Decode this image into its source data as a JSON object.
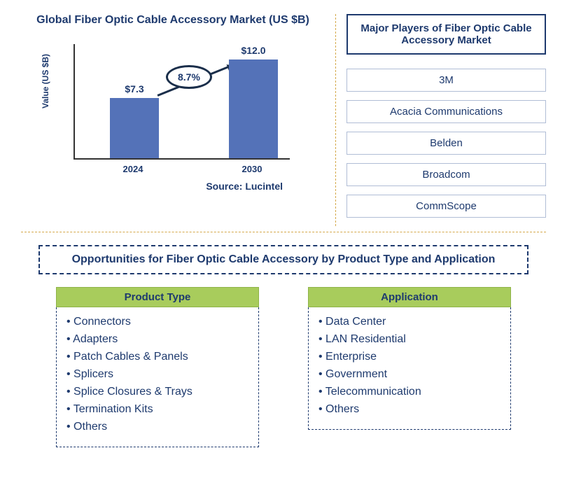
{
  "chart": {
    "title": "Global Fiber Optic Cable Accessory Market (US $B)",
    "ylabel": "Value (US $B)",
    "categories": [
      "2024",
      "2030"
    ],
    "values": [
      7.3,
      12.0
    ],
    "value_labels": [
      "$7.3",
      "$12.0"
    ],
    "growth_label": "8.7%",
    "bar_color": "#5472b8",
    "ylim_max": 14,
    "source": "Source: Lucintel"
  },
  "players": {
    "header": "Major Players of Fiber Optic Cable Accessory Market",
    "items": [
      "3M",
      "Acacia Communications",
      "Belden",
      "Broadcom",
      "CommScope"
    ]
  },
  "opportunities": {
    "header": "Opportunities for Fiber Optic Cable Accessory by Product Type and Application",
    "product_type": {
      "label": "Product Type",
      "items": [
        "Connectors",
        "Adapters",
        "Patch Cables & Panels",
        "Splicers",
        "Splice Closures & Trays",
        "Termination Kits",
        "Others"
      ]
    },
    "application": {
      "label": "Application",
      "items": [
        "Data Center",
        "LAN Residential",
        "Enterprise",
        "Government",
        "Telecommunication",
        "Others"
      ]
    }
  }
}
